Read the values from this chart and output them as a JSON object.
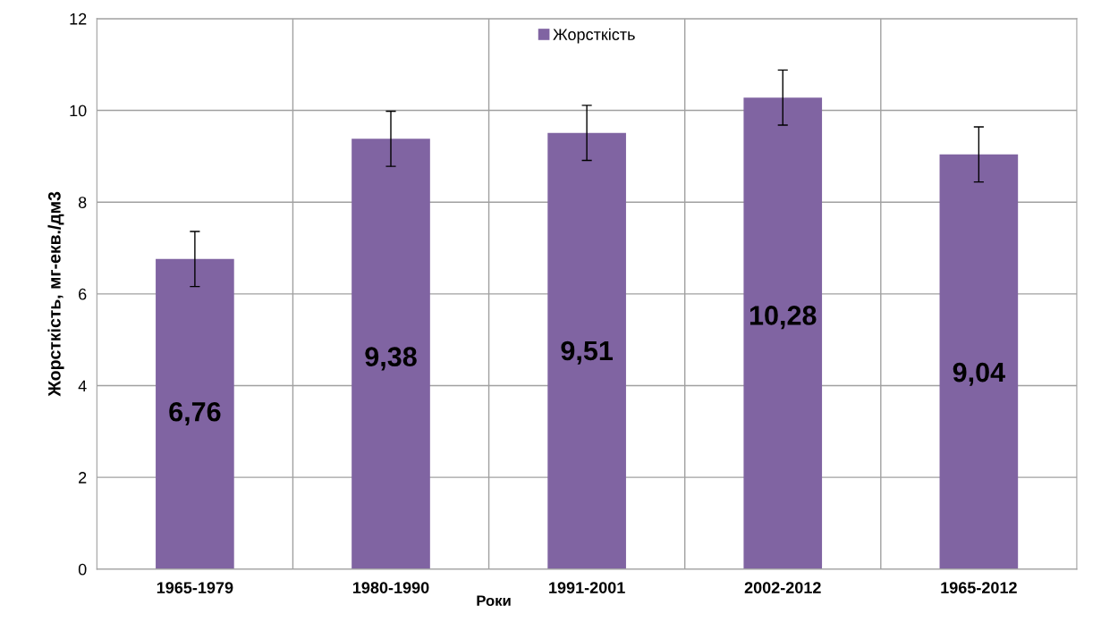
{
  "chart_data": {
    "type": "bar",
    "xlabel": "Роки",
    "ylabel": "Жорсткість, мг-екв./дм3",
    "categories": [
      "1965-1979",
      "1980-1990",
      "1991-2001",
      "2002-2012",
      "1965-2012"
    ],
    "series": [
      {
        "name": "Жорсткість",
        "color": "#8064a2",
        "values": [
          6.76,
          9.38,
          9.51,
          10.28,
          9.04
        ],
        "errors": [
          0.6,
          0.6,
          0.6,
          0.6,
          0.6
        ],
        "value_labels": [
          "6,76",
          "9,38",
          "9,51",
          "10,28",
          "9,04"
        ]
      }
    ],
    "ylim": [
      0,
      12
    ],
    "yticks": [
      0,
      2,
      4,
      6,
      8,
      10,
      12
    ],
    "grid": true,
    "legend": "top"
  }
}
